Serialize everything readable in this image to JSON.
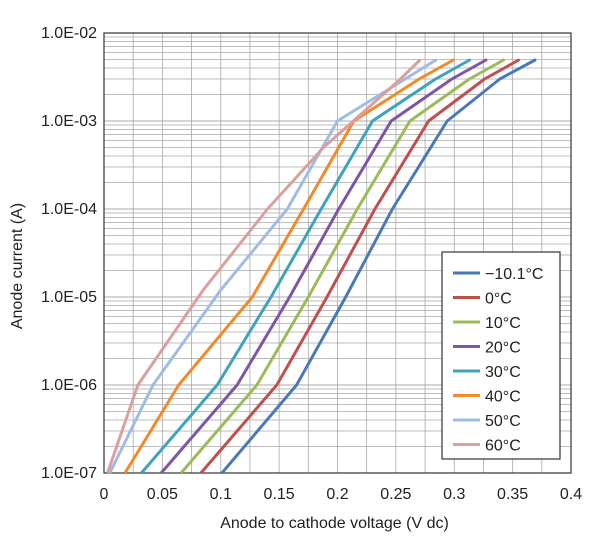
{
  "chart_data": {
    "type": "line",
    "title": "",
    "xlabel": "Anode to cathode voltage (V dc)",
    "ylabel": "Anode current (A)",
    "xlim": [
      0,
      0.4
    ],
    "ylim": [
      1e-07,
      0.01
    ],
    "yscale": "log",
    "grid": true,
    "legend_position": "lower-right",
    "x_ticks": [
      {
        "value": 0,
        "label": "0"
      },
      {
        "value": 0.05,
        "label": "0.05"
      },
      {
        "value": 0.1,
        "label": "0.1"
      },
      {
        "value": 0.15,
        "label": "0.15"
      },
      {
        "value": 0.2,
        "label": "0.2"
      },
      {
        "value": 0.25,
        "label": "0.25"
      },
      {
        "value": 0.3,
        "label": "0.3"
      },
      {
        "value": 0.35,
        "label": "0.35"
      },
      {
        "value": 0.4,
        "label": "0.4"
      }
    ],
    "y_ticks": [
      {
        "value": 1e-07,
        "label": "1.0E-07"
      },
      {
        "value": 1e-06,
        "label": "1.0E-06"
      },
      {
        "value": 1e-05,
        "label": "1.0E-05"
      },
      {
        "value": 0.0001,
        "label": "1.0E-04"
      },
      {
        "value": 0.001,
        "label": "1.0E-03"
      },
      {
        "value": 0.01,
        "label": "1.0E-02"
      }
    ],
    "series": [
      {
        "name": "−10.1°C",
        "color": "#4a7ab5",
        "points": [
          [
            0.101,
            1e-07
          ],
          [
            0.165,
            1e-06
          ],
          [
            0.207,
            1e-05
          ],
          [
            0.247,
            0.0001
          ],
          [
            0.294,
            0.001
          ],
          [
            0.339,
            0.003
          ],
          [
            0.37,
            0.005
          ]
        ]
      },
      {
        "name": "0°C",
        "color": "#c0504d",
        "points": [
          [
            0.083,
            1e-07
          ],
          [
            0.148,
            1e-06
          ],
          [
            0.191,
            1e-05
          ],
          [
            0.232,
            0.0001
          ],
          [
            0.278,
            0.001
          ],
          [
            0.326,
            0.003
          ],
          [
            0.356,
            0.005
          ]
        ]
      },
      {
        "name": "10°C",
        "color": "#9bbb59",
        "points": [
          [
            0.066,
            1e-07
          ],
          [
            0.131,
            1e-06
          ],
          [
            0.175,
            1e-05
          ],
          [
            0.217,
            0.0001
          ],
          [
            0.262,
            0.001
          ],
          [
            0.313,
            0.003
          ],
          [
            0.343,
            0.005
          ]
        ]
      },
      {
        "name": "20°C",
        "color": "#7f55a5",
        "points": [
          [
            0.049,
            1e-07
          ],
          [
            0.114,
            1e-06
          ],
          [
            0.159,
            1e-05
          ],
          [
            0.201,
            0.0001
          ],
          [
            0.246,
            0.001
          ],
          [
            0.298,
            0.003
          ],
          [
            0.328,
            0.005
          ]
        ]
      },
      {
        "name": "30°C",
        "color": "#3fa3bd",
        "points": [
          [
            0.032,
            1e-07
          ],
          [
            0.097,
            1e-06
          ],
          [
            0.143,
            1e-05
          ],
          [
            0.186,
            0.0001
          ],
          [
            0.23,
            0.001
          ],
          [
            0.284,
            0.003
          ],
          [
            0.314,
            0.005
          ]
        ]
      },
      {
        "name": "40°C",
        "color": "#f08a2a",
        "points": [
          [
            0.018,
            1e-07
          ],
          [
            0.064,
            1e-06
          ],
          [
            0.127,
            1e-05
          ],
          [
            0.171,
            0.0001
          ],
          [
            0.214,
            0.001
          ],
          [
            0.27,
            0.003
          ],
          [
            0.3,
            0.005
          ]
        ]
      },
      {
        "name": "50°C",
        "color": "#9fbde4",
        "points": [
          [
            0.005,
            1e-07
          ],
          [
            0.042,
            1e-06
          ],
          [
            0.1,
            1.2e-05
          ],
          [
            0.157,
            0.0001
          ],
          [
            0.2,
            0.001
          ],
          [
            0.258,
            0.003
          ],
          [
            0.285,
            0.005
          ]
        ]
      },
      {
        "name": "60°C",
        "color": "#d9a09e",
        "points": [
          [
            0.003,
            1e-07
          ],
          [
            0.029,
            1e-06
          ],
          [
            0.085,
            1.2e-05
          ],
          [
            0.14,
            0.0001
          ],
          [
            0.188,
            0.0005
          ],
          [
            0.254,
            0.003
          ],
          [
            0.271,
            0.005
          ]
        ]
      }
    ]
  }
}
